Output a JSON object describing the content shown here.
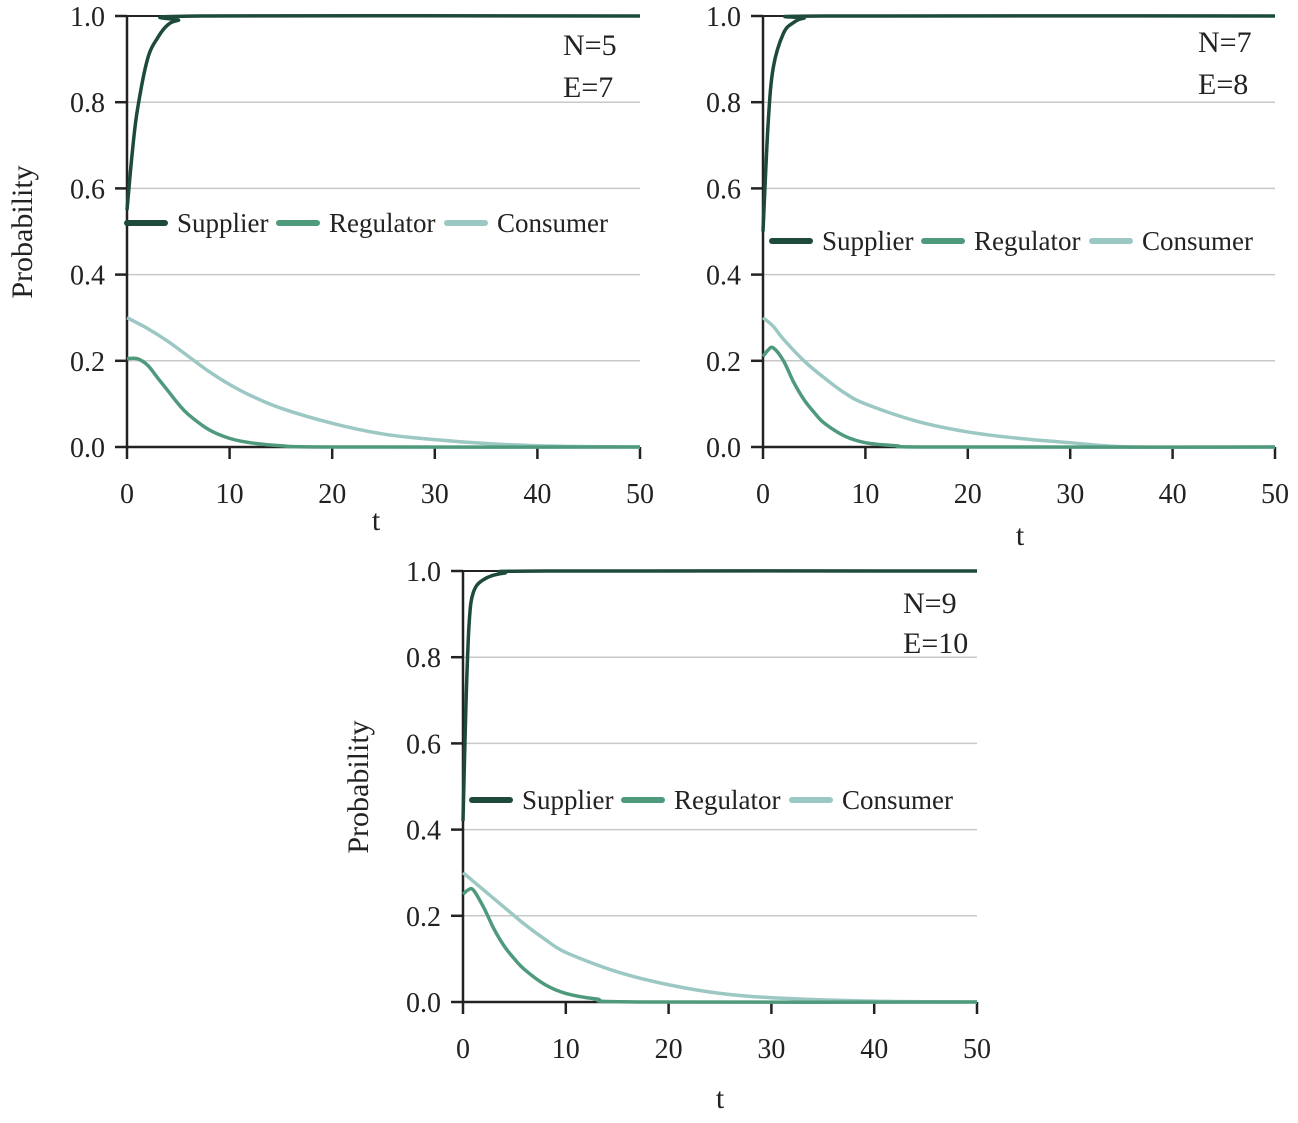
{
  "colors": {
    "Supplier": "#1d4a3c",
    "Regulator": "#4f9a7c",
    "Consumer": "#9cc8c4"
  },
  "chart_data": [
    {
      "type": "line",
      "xlabel": "t",
      "ylabel": "Probability",
      "xlim": [
        0,
        50
      ],
      "ylim": [
        0,
        1
      ],
      "xticks": [
        "0",
        "10",
        "20",
        "30",
        "40",
        "50"
      ],
      "yticks": [
        "0.0",
        "0.2",
        "0.4",
        "0.6",
        "0.8",
        "1.0"
      ],
      "grid": "horizontal",
      "legend": "middle-left",
      "annotations": [
        "N=5",
        "E=7"
      ],
      "series": [
        {
          "name": "Supplier",
          "x": [
            0,
            0.5,
            1,
            2,
            3,
            4,
            5,
            7,
            50
          ],
          "y": [
            0.55,
            0.68,
            0.78,
            0.9,
            0.95,
            0.98,
            0.99,
            1.0,
            1.0
          ]
        },
        {
          "name": "Regulator",
          "x": [
            0,
            1,
            2,
            3,
            4,
            5,
            6,
            8,
            10,
            12,
            15,
            20,
            50
          ],
          "y": [
            0.205,
            0.205,
            0.19,
            0.16,
            0.13,
            0.1,
            0.075,
            0.04,
            0.02,
            0.01,
            0.003,
            0,
            0
          ]
        },
        {
          "name": "Consumer",
          "x": [
            0,
            2,
            4,
            6,
            8,
            10,
            12,
            15,
            20,
            25,
            30,
            35,
            40,
            45,
            50
          ],
          "y": [
            0.3,
            0.275,
            0.245,
            0.21,
            0.175,
            0.145,
            0.12,
            0.09,
            0.055,
            0.03,
            0.017,
            0.008,
            0.003,
            0.001,
            0
          ]
        }
      ]
    },
    {
      "type": "line",
      "xlabel": "t",
      "ylabel": "",
      "xlim": [
        0,
        50
      ],
      "ylim": [
        0,
        1
      ],
      "xticks": [
        "0",
        "10",
        "20",
        "30",
        "40",
        "50"
      ],
      "yticks": [
        "0.0",
        "0.2",
        "0.4",
        "0.6",
        "0.8",
        "1.0"
      ],
      "grid": "horizontal",
      "legend": "middle-left",
      "annotations": [
        "N=7",
        "E=8"
      ],
      "series": [
        {
          "name": "Supplier",
          "x": [
            0,
            0.5,
            1,
            2,
            3,
            4,
            6,
            50
          ],
          "y": [
            0.5,
            0.75,
            0.88,
            0.96,
            0.985,
            0.995,
            1,
            1
          ]
        },
        {
          "name": "Regulator",
          "x": [
            0,
            0.5,
            1,
            2,
            3,
            4,
            5,
            6,
            8,
            10,
            13,
            17,
            50
          ],
          "y": [
            0.21,
            0.225,
            0.23,
            0.2,
            0.15,
            0.11,
            0.08,
            0.055,
            0.025,
            0.01,
            0.003,
            0,
            0
          ]
        },
        {
          "name": "Consumer",
          "x": [
            0,
            1,
            2,
            4,
            6,
            8,
            10,
            15,
            20,
            25,
            30,
            36,
            50
          ],
          "y": [
            0.3,
            0.28,
            0.25,
            0.2,
            0.16,
            0.125,
            0.1,
            0.06,
            0.035,
            0.02,
            0.01,
            0,
            0
          ]
        }
      ]
    },
    {
      "type": "line",
      "xlabel": "t",
      "ylabel": "Probability",
      "xlim": [
        0,
        50
      ],
      "ylim": [
        0,
        1
      ],
      "xticks": [
        "0",
        "10",
        "20",
        "30",
        "40",
        "50"
      ],
      "yticks": [
        "0.0",
        "0.2",
        "0.4",
        "0.6",
        "0.8",
        "1.0"
      ],
      "grid": "horizontal",
      "legend": "middle-left",
      "annotations": [
        "N=9",
        "E=10"
      ],
      "series": [
        {
          "name": "Supplier",
          "x": [
            0,
            0.3,
            0.6,
            1,
            2,
            4,
            8,
            50
          ],
          "y": [
            0.42,
            0.7,
            0.88,
            0.95,
            0.98,
            0.995,
            1,
            1
          ]
        },
        {
          "name": "Regulator",
          "x": [
            0,
            0.5,
            1,
            2,
            3,
            4,
            5,
            6,
            8,
            10,
            13,
            17,
            50
          ],
          "y": [
            0.25,
            0.26,
            0.26,
            0.22,
            0.17,
            0.13,
            0.1,
            0.075,
            0.04,
            0.02,
            0.007,
            0,
            0
          ]
        },
        {
          "name": "Consumer",
          "x": [
            0,
            2,
            4,
            6,
            8,
            10,
            15,
            20,
            25,
            30,
            40,
            50
          ],
          "y": [
            0.3,
            0.26,
            0.22,
            0.18,
            0.145,
            0.115,
            0.07,
            0.04,
            0.02,
            0.01,
            0.002,
            0
          ]
        }
      ]
    }
  ]
}
